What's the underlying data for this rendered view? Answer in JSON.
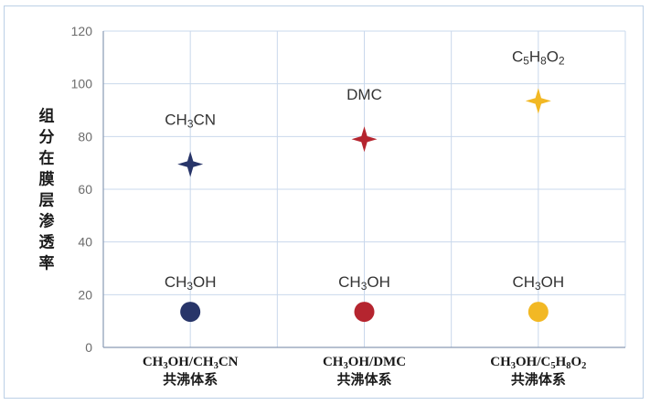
{
  "chart_data": {
    "type": "scatter",
    "ylabel": "组分在膜层渗透率",
    "ylim": [
      0,
      120
    ],
    "yticks": [
      "0",
      "20",
      "40",
      "60",
      "80",
      "100",
      "120"
    ],
    "grid": true,
    "categories": [
      {
        "line1": "CH3OH/CH3CN",
        "line2": "共沸体系"
      },
      {
        "line1": "CH3OH/DMC",
        "line2": "共沸体系"
      },
      {
        "line1": "CH3OH/C5H8O2",
        "line2": "共沸体系"
      }
    ],
    "points": [
      {
        "category": 0,
        "value": 13.5,
        "marker": "circle",
        "color": "#283569",
        "label": "CH3OH"
      },
      {
        "category": 0,
        "value": 69.5,
        "marker": "star",
        "color": "#283569",
        "label": "CH3CN"
      },
      {
        "category": 1,
        "value": 13.5,
        "marker": "circle",
        "color": "#b5252f",
        "label": "CH3OH"
      },
      {
        "category": 1,
        "value": 79,
        "marker": "star",
        "color": "#b5252f",
        "label": "DMC"
      },
      {
        "category": 2,
        "value": 13.5,
        "marker": "circle",
        "color": "#f2b824",
        "label": "CH3OH"
      },
      {
        "category": 2,
        "value": 93.5,
        "marker": "star",
        "color": "#f2b824",
        "label": "C5H8O2"
      }
    ]
  }
}
